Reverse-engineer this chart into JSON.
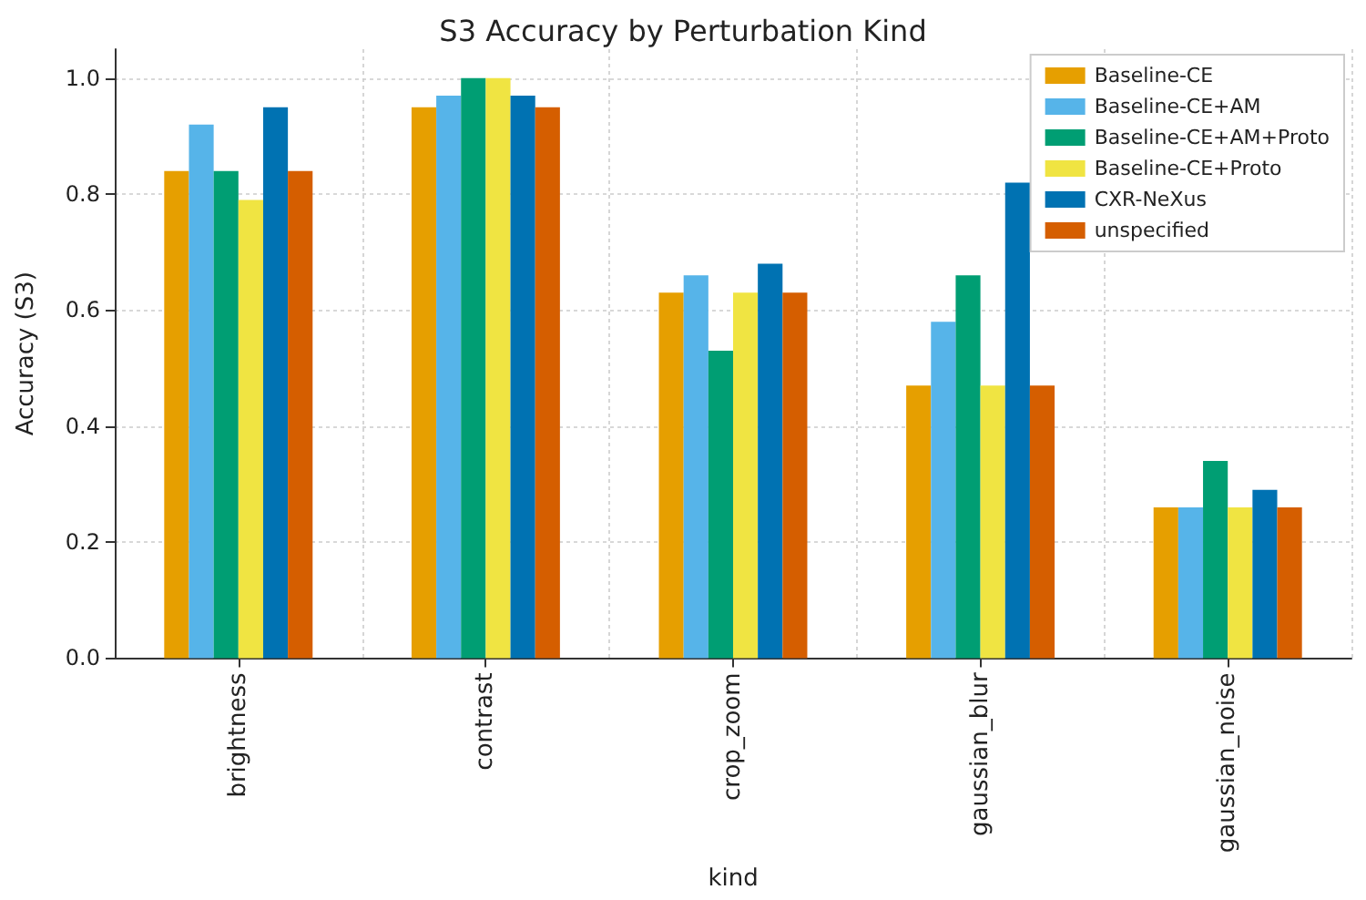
{
  "chart_data": {
    "type": "bar",
    "title": "S3 Accuracy by Perturbation Kind",
    "xlabel": "kind",
    "ylabel": "Accuracy (S3)",
    "categories": [
      "brightness",
      "contrast",
      "crop_zoom",
      "gaussian_blur",
      "gaussian_noise"
    ],
    "series": [
      {
        "name": "Baseline-CE",
        "color": "#e69f00",
        "values": [
          0.84,
          0.95,
          0.63,
          0.47,
          0.26
        ]
      },
      {
        "name": "Baseline-CE+AM",
        "color": "#56b4e9",
        "values": [
          0.92,
          0.97,
          0.66,
          0.58,
          0.26
        ]
      },
      {
        "name": "Baseline-CE+AM+Proto",
        "color": "#009e73",
        "values": [
          0.84,
          1.0,
          0.53,
          0.66,
          0.34
        ]
      },
      {
        "name": "Baseline-CE+Proto",
        "color": "#f0e442",
        "values": [
          0.79,
          1.0,
          0.63,
          0.47,
          0.26
        ]
      },
      {
        "name": "CXR-NeXus",
        "color": "#0072b2",
        "values": [
          0.95,
          0.97,
          0.68,
          0.82,
          0.29
        ]
      },
      {
        "name": "unspecified",
        "color": "#d55e00",
        "values": [
          0.84,
          0.95,
          0.63,
          0.47,
          0.26
        ]
      }
    ],
    "ylim": [
      0,
      1.05
    ],
    "yticks": [
      {
        "value": 0,
        "label": "0.0"
      },
      0.2,
      0.4,
      0.6,
      0.8,
      {
        "value": 1,
        "label": "1.0"
      }
    ],
    "grid": true,
    "legend": "top right"
  }
}
